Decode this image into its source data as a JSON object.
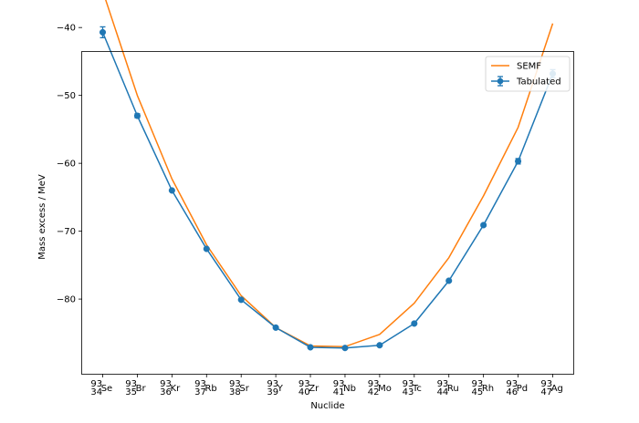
{
  "chart_data": {
    "type": "line",
    "xlabel": "Nuclide",
    "ylabel": "Mass excess / MeV",
    "ylim": [
      -91,
      -43.6
    ],
    "yticks": [
      -80,
      -70,
      -60,
      -50,
      -40
    ],
    "grid": false,
    "legend_position": "top-right",
    "categories": [
      {
        "mass": "93",
        "z": "34",
        "symbol": "Se"
      },
      {
        "mass": "93",
        "z": "35",
        "symbol": "Br"
      },
      {
        "mass": "93",
        "z": "36",
        "symbol": "Kr"
      },
      {
        "mass": "93",
        "z": "37",
        "symbol": "Rb"
      },
      {
        "mass": "93",
        "z": "38",
        "symbol": "Sr"
      },
      {
        "mass": "93",
        "z": "39",
        "symbol": "Y"
      },
      {
        "mass": "93",
        "z": "40",
        "symbol": "Zr"
      },
      {
        "mass": "93",
        "z": "41",
        "symbol": "Nb"
      },
      {
        "mass": "93",
        "z": "42",
        "symbol": "Mo"
      },
      {
        "mass": "93",
        "z": "43",
        "symbol": "Tc"
      },
      {
        "mass": "93",
        "z": "44",
        "symbol": "Ru"
      },
      {
        "mass": "93",
        "z": "45",
        "symbol": "Rh"
      },
      {
        "mass": "93",
        "z": "46",
        "symbol": "Pd"
      },
      {
        "mass": "93",
        "z": "47",
        "symbol": "Ag"
      }
    ],
    "series": [
      {
        "name": "SEMF",
        "style": "line",
        "color": "#ff7f0e",
        "values": [
          -34.6,
          -50.0,
          -62.3,
          -72.0,
          -79.5,
          -84.2,
          -86.9,
          -87.0,
          -85.2,
          -80.6,
          -73.9,
          -64.8,
          -54.7,
          -39.4
        ]
      },
      {
        "name": "Tabulated",
        "style": "line-marker-errorbar",
        "color": "#1f77b4",
        "values": [
          -40.7,
          -53.0,
          -64.0,
          -72.6,
          -80.1,
          -84.2,
          -87.1,
          -87.2,
          -86.8,
          -83.6,
          -77.3,
          -69.1,
          -59.7,
          -46.8
        ],
        "errors": [
          0.8,
          0.3,
          0.1,
          0.1,
          0.1,
          0.1,
          0.1,
          0.1,
          0.1,
          0.1,
          0.1,
          0.2,
          0.4,
          0.6
        ]
      }
    ]
  }
}
